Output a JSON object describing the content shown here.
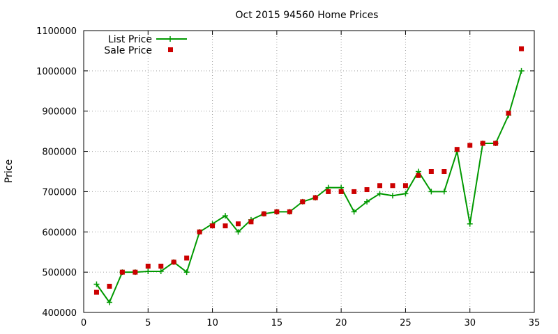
{
  "chart_data": {
    "type": "line",
    "title": "Oct 2015 94560 Home Prices",
    "xlabel": "",
    "ylabel": "Price",
    "xlim": [
      0,
      35
    ],
    "ylim": [
      400000,
      1100000
    ],
    "xticks": [
      0,
      5,
      10,
      15,
      20,
      25,
      30,
      35
    ],
    "yticks": [
      400000,
      500000,
      600000,
      700000,
      800000,
      900000,
      1000000,
      1100000
    ],
    "grid": true,
    "legend_position": "top-left",
    "series": [
      {
        "name": "List Price",
        "style": "line+cross",
        "color": "#009900",
        "x": [
          1,
          2,
          3,
          4,
          5,
          6,
          7,
          8,
          9,
          10,
          11,
          12,
          13,
          14,
          15,
          16,
          17,
          18,
          19,
          20,
          21,
          22,
          23,
          24,
          25,
          26,
          27,
          28,
          29,
          30,
          31,
          32,
          33,
          34
        ],
        "y": [
          470000,
          425000,
          500000,
          500000,
          502000,
          502000,
          525000,
          500000,
          600000,
          620000,
          640000,
          600000,
          630000,
          645000,
          650000,
          650000,
          675000,
          685000,
          710000,
          710000,
          650000,
          675000,
          695000,
          690000,
          695000,
          750000,
          700000,
          700000,
          800000,
          620000,
          820000,
          820000,
          890000,
          1000000
        ]
      },
      {
        "name": "Sale Price",
        "style": "square",
        "color": "#cc0000",
        "x": [
          1,
          2,
          3,
          4,
          5,
          6,
          7,
          8,
          9,
          10,
          11,
          12,
          13,
          14,
          15,
          16,
          17,
          18,
          19,
          20,
          21,
          22,
          23,
          24,
          25,
          26,
          27,
          28,
          29,
          30,
          31,
          32,
          33,
          34
        ],
        "y": [
          450000,
          465000,
          500000,
          500000,
          515000,
          515000,
          525000,
          535000,
          600000,
          615000,
          615000,
          620000,
          625000,
          645000,
          650000,
          650000,
          675000,
          685000,
          700000,
          700000,
          700000,
          705000,
          715000,
          715000,
          715000,
          740000,
          750000,
          750000,
          805000,
          815000,
          820000,
          820000,
          895000,
          1055000
        ]
      }
    ]
  }
}
